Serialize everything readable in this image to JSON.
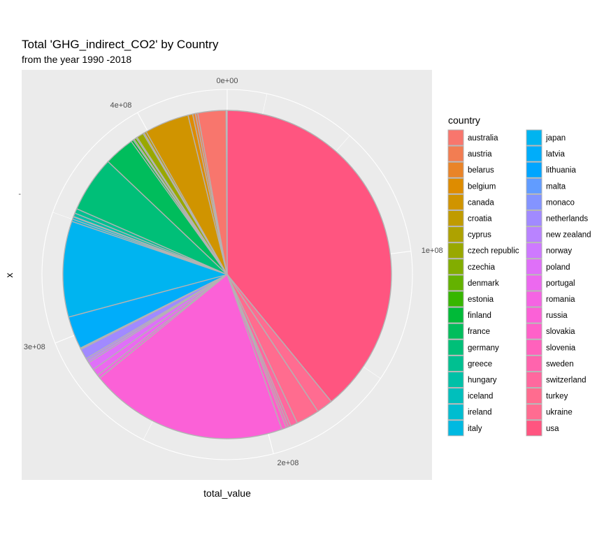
{
  "chart_data": {
    "type": "pie",
    "title": "Total 'GHG_indirect_CO2' by Country",
    "subtitle": "from the year 1990 -2018",
    "xlabel": "total_value",
    "ylabel": "x",
    "y_tick_label": "-",
    "radial_ticks": [
      "0e+00",
      "1e+08",
      "2e+08",
      "3e+08",
      "4e+08"
    ],
    "radial_tick_values": [
      0,
      100000000,
      200000000,
      300000000,
      400000000
    ],
    "total": 435000000,
    "grid": true,
    "legend_title": "country",
    "legend_position": "right",
    "slice_border_color": "#b3b3b3",
    "categories": [
      "australia",
      "austria",
      "belarus",
      "belgium",
      "canada",
      "croatia",
      "cyprus",
      "czech republic",
      "czechia",
      "denmark",
      "estonia",
      "finland",
      "france",
      "germany",
      "greece",
      "hungary",
      "iceland",
      "ireland",
      "italy",
      "japan",
      "latvia",
      "lithuania",
      "malta",
      "monaco",
      "netherlands",
      "new zealand",
      "norway",
      "poland",
      "portugal",
      "romania",
      "russia",
      "slovakia",
      "slovenia",
      "sweden",
      "switzerland",
      "turkey",
      "ukraine",
      "usa"
    ],
    "colors": [
      "#F8766D",
      "#F27D52",
      "#E98428",
      "#DE8C00",
      "#D09400",
      "#C09B00",
      "#AEA200",
      "#99A800",
      "#82AD00",
      "#64B200",
      "#37B600",
      "#00BA38",
      "#00BD5C",
      "#00BF78",
      "#00C091",
      "#00C0A7",
      "#00BFBC",
      "#00BDD0",
      "#00B9E1",
      "#00B4F0",
      "#00ADFA",
      "#00A5FF",
      "#619CFF",
      "#8494FF",
      "#A18AFF",
      "#B983FF",
      "#CE79FF",
      "#DF70F8",
      "#EC69EF",
      "#F564E3",
      "#FB61D7",
      "#FF61C9",
      "#FF62BC",
      "#FF64AD",
      "#FF689E",
      "#FF6C8F",
      "#FF6C91",
      "#FF5580"
    ],
    "values": [
      12000000,
      1000000,
      1200000,
      2000000,
      19000000,
      1000000,
      500000,
      3000000,
      500000,
      1000000,
      500000,
      1000000,
      13000000,
      24000000,
      2000000,
      1500000,
      200000,
      1000000,
      1000000,
      41000000,
      14000000,
      300000,
      200000,
      100000,
      4500000,
      1000000,
      1000000,
      3500000,
      3000000,
      1500000,
      85000000,
      2000000,
      1000000,
      1000000,
      3000000,
      10000000,
      7000000,
      170000000
    ]
  }
}
